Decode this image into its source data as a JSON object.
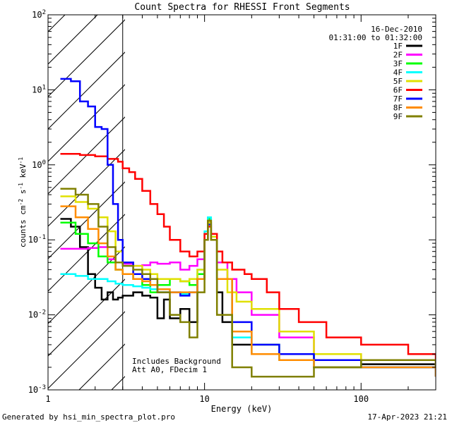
{
  "chart_data": {
    "type": "line",
    "title": "Count Spectra for RHESSI Front Segments",
    "xlabel": "Energy (keV)",
    "ylabel_parts": [
      "counts cm",
      "-2",
      " s",
      "-1",
      " keV",
      "-1"
    ],
    "xscale": "log",
    "yscale": "log",
    "xlim": [
      1,
      300
    ],
    "ylim": [
      0.001,
      100
    ],
    "x_ticks": [
      {
        "value": 1,
        "label": "1"
      },
      {
        "value": 10,
        "label": "10"
      },
      {
        "value": 100,
        "label": "100"
      }
    ],
    "y_ticks": [
      {
        "value": 0.001,
        "mant": "10",
        "exp": "-3"
      },
      {
        "value": 0.01,
        "mant": "10",
        "exp": "-2"
      },
      {
        "value": 0.1,
        "mant": "10",
        "exp": "-1"
      },
      {
        "value": 1,
        "mant": "10",
        "exp": "0"
      },
      {
        "value": 10,
        "mant": "10",
        "exp": "1"
      },
      {
        "value": 100,
        "mant": "10",
        "exp": "2"
      }
    ],
    "excluded_region": {
      "from": 1,
      "to": 3,
      "style": "hatched"
    },
    "date": "16-Dec-2010",
    "time_range": "01:31:00 to 01:32:00",
    "annotations": [
      "Includes Background",
      "Att A0, FDecim 1"
    ],
    "legend_position": "top-right",
    "series": [
      {
        "name": "1F",
        "color": "#000000",
        "x": [
          1.2,
          1.4,
          1.6,
          1.8,
          2.0,
          2.2,
          2.4,
          2.6,
          2.8,
          3.0,
          3.5,
          4,
          4.5,
          5,
          5.5,
          6,
          7,
          8,
          9,
          10,
          10.5,
          11,
          12,
          13,
          15,
          20,
          30,
          50,
          100,
          300
        ],
        "y": [
          0.19,
          0.15,
          0.08,
          0.035,
          0.023,
          0.016,
          0.02,
          0.016,
          0.017,
          0.018,
          0.02,
          0.018,
          0.017,
          0.009,
          0.016,
          0.009,
          0.012,
          0.008,
          0.03,
          0.1,
          0.17,
          0.1,
          0.02,
          0.008,
          0.004,
          0.003,
          0.003,
          0.002,
          0.0022,
          0.0018
        ]
      },
      {
        "name": "2F",
        "color": "#ff00ff",
        "x": [
          1.2,
          1.5,
          1.8,
          2.1,
          2.4,
          2.7,
          3.0,
          3.5,
          4,
          4.5,
          5,
          6,
          7,
          8,
          9,
          10,
          10.5,
          11,
          12,
          14,
          16,
          20,
          30,
          50,
          100,
          300
        ],
        "y": [
          0.076,
          0.076,
          0.078,
          0.08,
          0.055,
          0.05,
          0.048,
          0.045,
          0.046,
          0.05,
          0.048,
          0.05,
          0.04,
          0.045,
          0.055,
          0.1,
          0.18,
          0.1,
          0.05,
          0.03,
          0.02,
          0.01,
          0.005,
          0.003,
          0.0025,
          0.0018
        ]
      },
      {
        "name": "3F",
        "color": "#00ff00",
        "x": [
          1.2,
          1.5,
          1.8,
          2.1,
          2.4,
          2.7,
          3.0,
          3.5,
          4,
          4.5,
          5,
          6,
          7,
          8,
          9,
          10,
          10.5,
          11,
          12,
          15,
          20,
          30,
          50,
          100,
          300
        ],
        "y": [
          0.17,
          0.12,
          0.09,
          0.06,
          0.05,
          0.04,
          0.035,
          0.03,
          0.025,
          0.02,
          0.025,
          0.03,
          0.028,
          0.025,
          0.035,
          0.1,
          0.19,
          0.1,
          0.03,
          0.006,
          0.004,
          0.003,
          0.0025,
          0.002,
          0.0015
        ]
      },
      {
        "name": "4F",
        "color": "#00ffff",
        "x": [
          1.2,
          1.5,
          1.8,
          2.1,
          2.4,
          2.7,
          3.0,
          3.5,
          4,
          4.5,
          5,
          6,
          7,
          8,
          9,
          10,
          10.5,
          11,
          12,
          15,
          20,
          30,
          50,
          100,
          300
        ],
        "y": [
          0.035,
          0.033,
          0.03,
          0.03,
          0.028,
          0.026,
          0.025,
          0.024,
          0.023,
          0.022,
          0.02,
          0.02,
          0.019,
          0.02,
          0.04,
          0.13,
          0.2,
          0.12,
          0.03,
          0.005,
          0.003,
          0.0025,
          0.002,
          0.002,
          0.0018
        ]
      },
      {
        "name": "5F",
        "color": "#e0e000",
        "x": [
          1.2,
          1.5,
          1.8,
          2.1,
          2.4,
          2.7,
          3.0,
          3.5,
          4,
          4.5,
          5,
          6,
          7,
          8,
          9,
          10,
          10.5,
          11,
          12,
          14,
          16,
          20,
          30,
          50,
          100,
          300
        ],
        "y": [
          0.38,
          0.32,
          0.26,
          0.2,
          0.13,
          0.07,
          0.05,
          0.045,
          0.04,
          0.035,
          0.03,
          0.03,
          0.028,
          0.03,
          0.04,
          0.12,
          0.17,
          0.11,
          0.04,
          0.02,
          0.015,
          0.012,
          0.006,
          0.003,
          0.0025,
          0.0018
        ]
      },
      {
        "name": "6F",
        "color": "#ff0000",
        "x": [
          1.2,
          1.6,
          2.0,
          2.4,
          2.8,
          3.0,
          3.3,
          3.6,
          4.0,
          4.5,
          5,
          5.5,
          6,
          7,
          8,
          9,
          10,
          10.5,
          11,
          12,
          13,
          15,
          18,
          20,
          25,
          30,
          40,
          60,
          100,
          200,
          300
        ],
        "y": [
          1.4,
          1.35,
          1.3,
          1.2,
          1.1,
          0.9,
          0.8,
          0.65,
          0.45,
          0.3,
          0.22,
          0.15,
          0.1,
          0.07,
          0.06,
          0.07,
          0.12,
          0.15,
          0.12,
          0.07,
          0.05,
          0.04,
          0.035,
          0.03,
          0.02,
          0.012,
          0.008,
          0.005,
          0.004,
          0.003,
          0.0025
        ]
      },
      {
        "name": "7F",
        "color": "#0000ff",
        "x": [
          1.2,
          1.4,
          1.6,
          1.8,
          2.0,
          2.2,
          2.4,
          2.6,
          2.8,
          3.0,
          3.5,
          4,
          4.5,
          5,
          6,
          7,
          8,
          9,
          10,
          10.5,
          11,
          12,
          15,
          20,
          30,
          50,
          100,
          300
        ],
        "y": [
          14,
          13,
          7,
          6,
          3.2,
          3.0,
          1.0,
          0.3,
          0.1,
          0.05,
          0.035,
          0.03,
          0.025,
          0.02,
          0.02,
          0.018,
          0.02,
          0.03,
          0.1,
          0.16,
          0.1,
          0.03,
          0.008,
          0.004,
          0.003,
          0.0025,
          0.002,
          0.0015
        ]
      },
      {
        "name": "8F",
        "color": "#ff8c00",
        "x": [
          1.2,
          1.5,
          1.8,
          2.1,
          2.4,
          2.7,
          3.0,
          3.5,
          4,
          4.5,
          5,
          6,
          7,
          8,
          9,
          10,
          10.5,
          11,
          12,
          15,
          20,
          30,
          50,
          100,
          300
        ],
        "y": [
          0.28,
          0.2,
          0.14,
          0.09,
          0.06,
          0.04,
          0.035,
          0.03,
          0.028,
          0.025,
          0.022,
          0.02,
          0.02,
          0.02,
          0.03,
          0.1,
          0.18,
          0.1,
          0.03,
          0.006,
          0.003,
          0.0025,
          0.002,
          0.002,
          0.0015
        ]
      },
      {
        "name": "9F",
        "color": "#808000",
        "x": [
          1.2,
          1.5,
          1.8,
          2.1,
          2.4,
          2.7,
          3.0,
          3.5,
          4,
          4.5,
          5,
          6,
          7,
          8,
          9,
          10,
          10.5,
          11,
          12,
          15,
          20,
          30,
          50,
          100,
          300
        ],
        "y": [
          0.48,
          0.4,
          0.3,
          0.15,
          0.08,
          0.05,
          0.045,
          0.04,
          0.035,
          0.03,
          0.02,
          0.01,
          0.008,
          0.005,
          0.02,
          0.1,
          0.18,
          0.1,
          0.01,
          0.002,
          0.0015,
          0.0015,
          0.002,
          0.0025,
          0.002
        ]
      }
    ]
  },
  "footer": {
    "generated_by": "Generated by hsi_min_spectra_plot.pro",
    "timestamp": "17-Apr-2023 21:21"
  }
}
